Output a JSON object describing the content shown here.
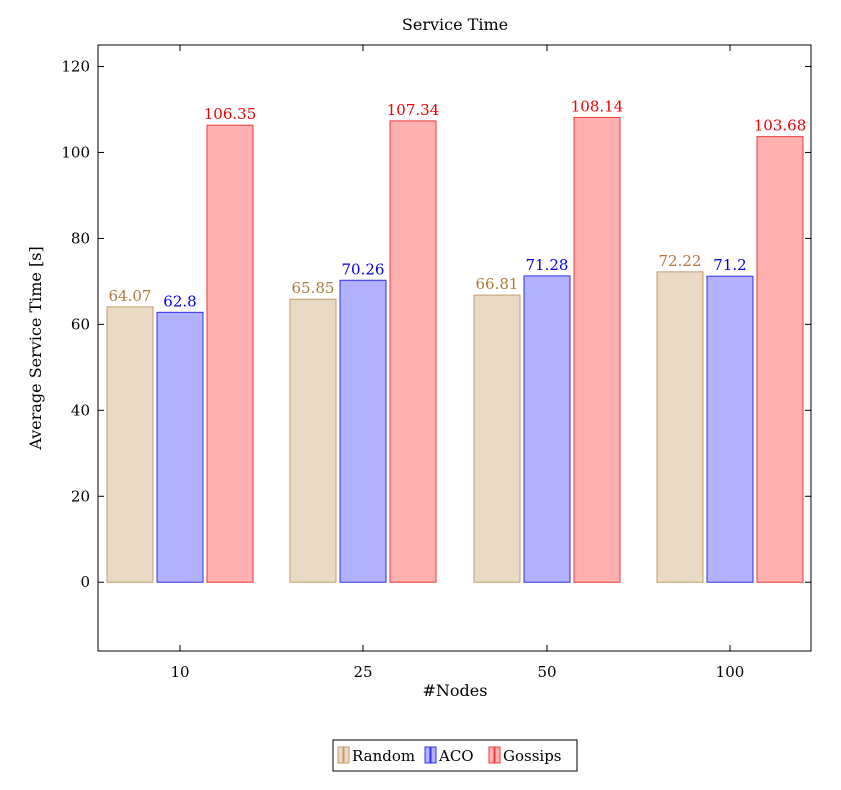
{
  "chart_data": {
    "type": "bar",
    "title": "Service Time",
    "xlabel": "#Nodes",
    "ylabel": "Average Service Time [s]",
    "categories": [
      "10",
      "25",
      "50",
      "100"
    ],
    "ylim": [
      -16,
      125
    ],
    "yticks": [
      0,
      20,
      40,
      60,
      80,
      100,
      120
    ],
    "grid": false,
    "legend_position": "bottom-center",
    "series": [
      {
        "name": "Random",
        "values": [
          64.07,
          65.85,
          66.81,
          72.22
        ],
        "labels": [
          "64.07",
          "65.85",
          "66.81",
          "72.22"
        ],
        "fill": "#ead9c5",
        "stroke": "#c49a6c",
        "label_color": "#b07a3c"
      },
      {
        "name": "ACO",
        "values": [
          62.8,
          70.26,
          71.28,
          71.2
        ],
        "labels": [
          "62.8",
          "70.26",
          "71.28",
          "71.2"
        ],
        "fill": "#b2b2fe",
        "stroke": "#3030f0",
        "label_color": "#0000ee"
      },
      {
        "name": "Gossips",
        "values": [
          106.35,
          107.34,
          108.14,
          103.68
        ],
        "labels": [
          "106.35",
          "107.34",
          "108.14",
          "103.68"
        ],
        "fill": "#ffb0b0",
        "stroke": "#f03a3a",
        "label_color": "#ee0000"
      }
    ]
  }
}
